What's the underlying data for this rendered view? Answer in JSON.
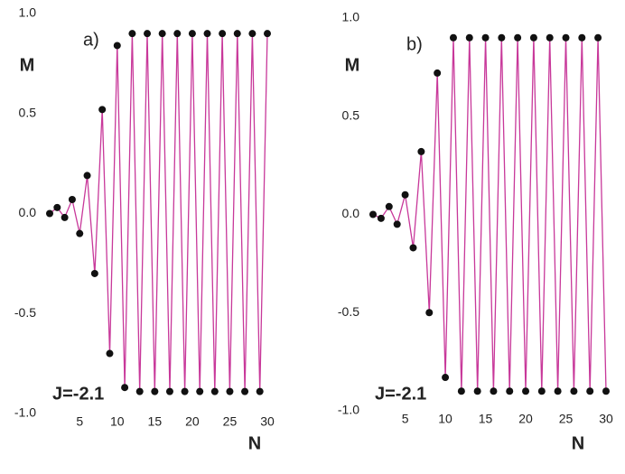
{
  "chart_data": [
    {
      "type": "line",
      "annotation": "a)",
      "parameter": "J=-2.1",
      "xlabel": "N",
      "ylabel": "M",
      "x": [
        1,
        2,
        3,
        4,
        5,
        6,
        7,
        8,
        9,
        10,
        11,
        12,
        13,
        14,
        15,
        16,
        17,
        18,
        19,
        20,
        21,
        22,
        23,
        24,
        25,
        26,
        27,
        28,
        29,
        30
      ],
      "values": [
        0.0,
        0.03,
        -0.02,
        0.07,
        -0.1,
        0.19,
        -0.3,
        0.52,
        -0.7,
        0.84,
        -0.87,
        0.9,
        -0.89,
        0.9,
        -0.89,
        0.9,
        -0.89,
        0.9,
        -0.89,
        0.9,
        -0.89,
        0.9,
        -0.89,
        0.9,
        -0.89,
        0.9,
        -0.89,
        0.9,
        -0.89,
        0.9
      ],
      "line_color": "#c8389a",
      "marker_color": "#111111",
      "xlim": [
        1,
        30
      ],
      "xticks": [
        5,
        10,
        15,
        20,
        25,
        30
      ],
      "ylim": [
        -1,
        1
      ],
      "yticks": [
        {
          "value": 1,
          "label": "1.0"
        },
        0.5,
        {
          "value": 0,
          "label": "0.0"
        },
        -0.5,
        {
          "value": -1,
          "label": "-1.0"
        }
      ]
    },
    {
      "type": "line",
      "annotation": "b)",
      "parameter": "J=-2.1",
      "xlabel": "N",
      "ylabel": "M",
      "x": [
        1,
        2,
        3,
        4,
        5,
        6,
        7,
        8,
        9,
        10,
        11,
        12,
        13,
        14,
        15,
        16,
        17,
        18,
        19,
        20,
        21,
        22,
        23,
        24,
        25,
        26,
        27,
        28,
        29,
        30
      ],
      "values": [
        0.0,
        -0.02,
        0.04,
        -0.05,
        0.1,
        -0.17,
        0.32,
        -0.5,
        0.72,
        -0.83,
        0.9,
        -0.9,
        0.9,
        -0.9,
        0.9,
        -0.9,
        0.9,
        -0.9,
        0.9,
        -0.9,
        0.9,
        -0.9,
        0.9,
        -0.9,
        0.9,
        -0.9,
        0.9,
        -0.9,
        0.9,
        -0.9
      ],
      "line_color": "#c8389a",
      "marker_color": "#111111",
      "xlim": [
        1,
        30
      ],
      "xticks": [
        5,
        10,
        15,
        20,
        25,
        30
      ],
      "ylim": [
        -1,
        1
      ],
      "yticks": [
        {
          "value": 1,
          "label": "1.0"
        },
        0.5,
        {
          "value": 0,
          "label": "0.0"
        },
        -0.5,
        {
          "value": -1,
          "label": "-1.0"
        }
      ]
    }
  ]
}
